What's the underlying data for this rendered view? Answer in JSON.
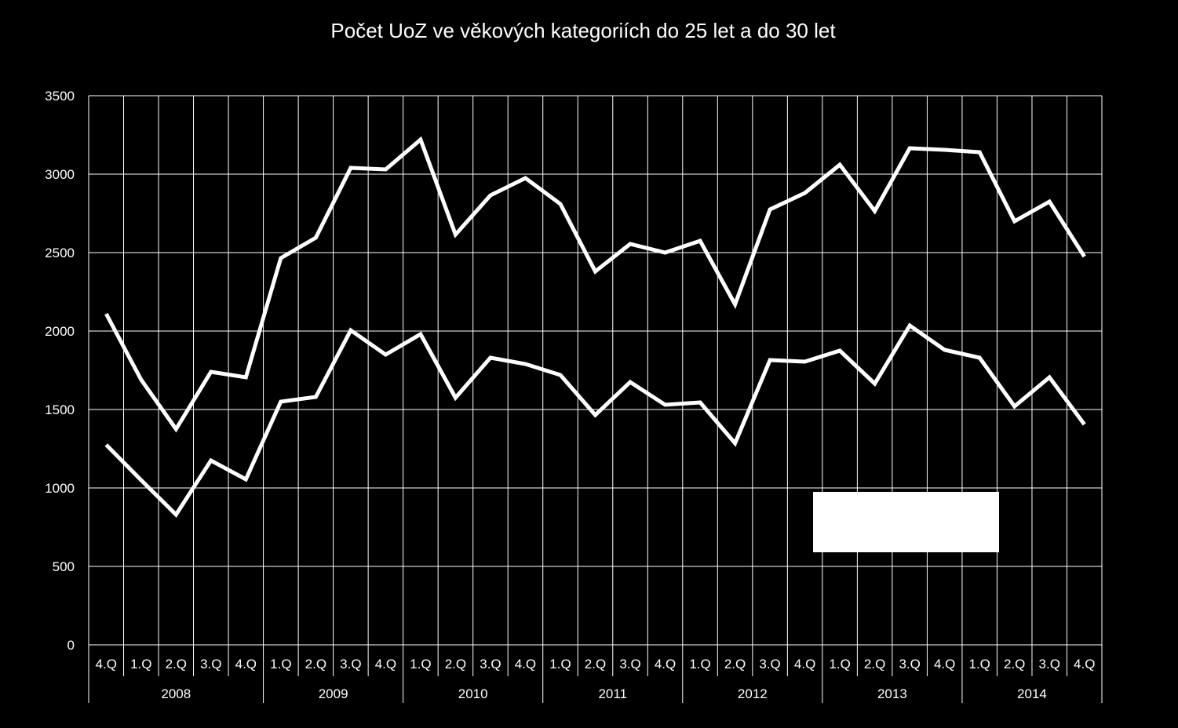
{
  "chart_data": {
    "type": "line",
    "title": "Počet UoZ ve věkových kategoriích do 25 let a do 30 let",
    "xlabel": "",
    "ylabel": "",
    "ylim": [
      0,
      3500
    ],
    "yticks": [
      "0",
      "500",
      "1000",
      "1500",
      "2000",
      "2500",
      "3000",
      "3500"
    ],
    "grid": true,
    "legend": "none",
    "line_color": "#ffffff",
    "background": "#000000",
    "categories": [
      "4.Q",
      "1.Q",
      "2.Q",
      "3.Q",
      "4.Q",
      "1.Q",
      "2.Q",
      "3.Q",
      "4.Q",
      "1.Q",
      "2.Q",
      "3.Q",
      "4.Q",
      "1.Q",
      "2.Q",
      "3.Q",
      "4.Q",
      "1.Q",
      "2.Q",
      "3.Q",
      "4.Q",
      "1.Q",
      "2.Q",
      "3.Q",
      "4.Q",
      "1.Q",
      "2.Q",
      "3.Q",
      "4.Q"
    ],
    "years": [
      {
        "label": "2008",
        "span": 5
      },
      {
        "label": "2009",
        "span": 4
      },
      {
        "label": "2010",
        "span": 4
      },
      {
        "label": "2011",
        "span": 4
      },
      {
        "label": "2012",
        "span": 4
      },
      {
        "label": "2013",
        "span": 4
      },
      {
        "label": "2014",
        "span": 4
      }
    ],
    "series": [
      {
        "values": [
          2110,
          1690,
          1375,
          1740,
          1705,
          2465,
          2595,
          3040,
          3030,
          3220,
          2615,
          2865,
          2975,
          2810,
          2380,
          2555,
          2500,
          2575,
          2170,
          2775,
          2880,
          3060,
          2765,
          3165,
          3155,
          3140,
          2700,
          2825,
          2475
        ]
      },
      {
        "values": [
          1275,
          1050,
          830,
          1175,
          1055,
          1550,
          1580,
          2005,
          1850,
          1980,
          1575,
          1830,
          1790,
          1720,
          1465,
          1675,
          1530,
          1545,
          1285,
          1815,
          1805,
          1875,
          1665,
          2035,
          1880,
          1830,
          1520,
          1705,
          1405
        ]
      }
    ]
  }
}
